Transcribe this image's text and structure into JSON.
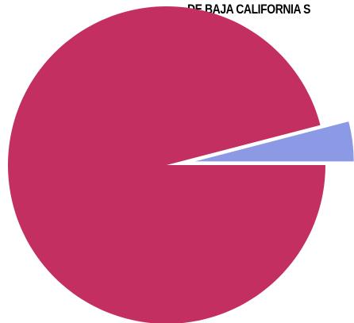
{
  "chart_data": {
    "type": "pie",
    "title": "DE BAJA CALIFORNIA S",
    "slices": [
      {
        "value": 0.9595,
        "color": "#c42f62"
      },
      {
        "value": 0.0405,
        "color": "#8c9ae6"
      }
    ],
    "start_angle_deg": 0,
    "exploded_slice": 1
  }
}
